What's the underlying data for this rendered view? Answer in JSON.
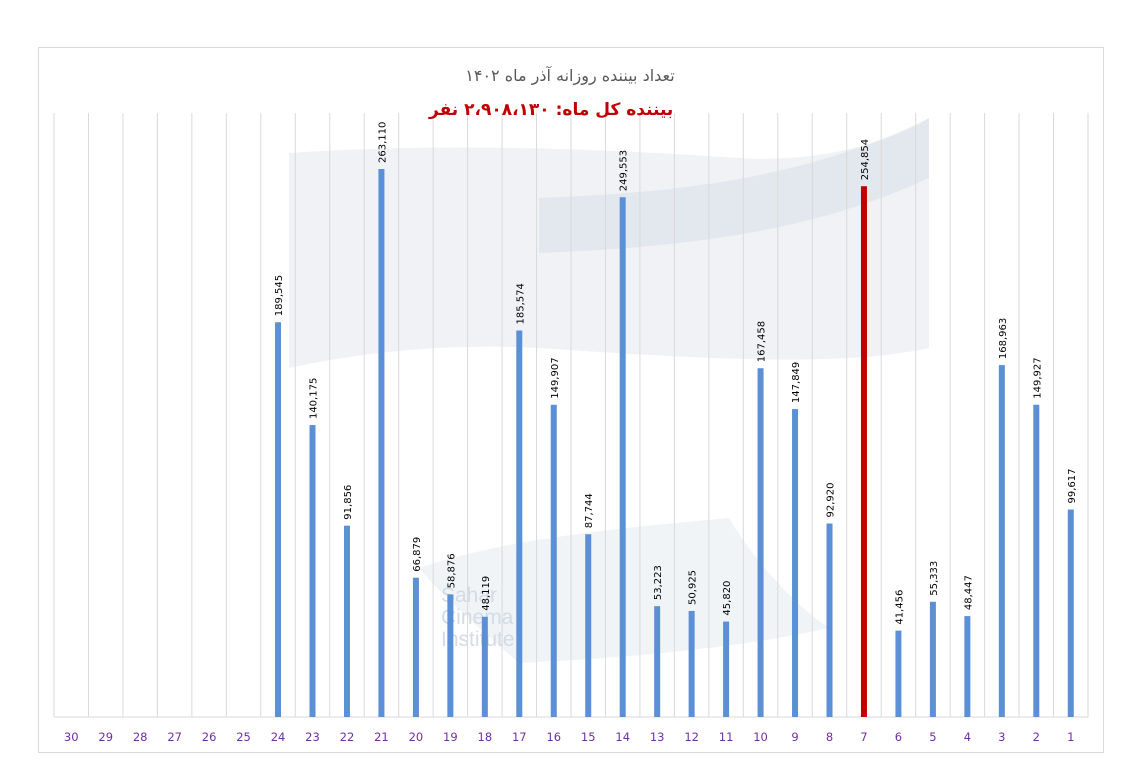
{
  "chart_data": {
    "type": "bar",
    "title": "تعداد بیننده روزانه آذر ماه ۱۴۰۲",
    "subtitle": "بیننده کل ماه: ۲،۹۰۸،۱۳۰ نفر",
    "categories": [
      "1",
      "2",
      "3",
      "4",
      "5",
      "6",
      "7",
      "8",
      "9",
      "10",
      "11",
      "12",
      "13",
      "14",
      "15",
      "16",
      "17",
      "18",
      "19",
      "20",
      "21",
      "22",
      "23",
      "24",
      "25",
      "26",
      "27",
      "28",
      "29",
      "30"
    ],
    "values": [
      99617,
      149927,
      168963,
      48447,
      55333,
      41456,
      254854,
      92920,
      147849,
      167458,
      45820,
      50925,
      53223,
      249553,
      87744,
      149907,
      185574,
      48119,
      58876,
      66879,
      263110,
      91856,
      140175,
      189545,
      null,
      null,
      null,
      null,
      null,
      null
    ],
    "value_labels": [
      "99,617",
      "149,927",
      "168,963",
      "48,447",
      "55,333",
      "41,456",
      "254,854",
      "92,920",
      "147,849",
      "167,458",
      "45,820",
      "50,925",
      "53,223",
      "249,553",
      "87,744",
      "149,907",
      "185,574",
      "48,119",
      "58,876",
      "66,879",
      "263,110",
      "91,856",
      "140,175",
      "189,545",
      "",
      "",
      "",
      "",
      "",
      ""
    ],
    "highlight_category": "7",
    "x_direction": "right-to-left",
    "ylim": [
      0,
      290000
    ],
    "grid": true,
    "colors": {
      "bar": "#5b8fd6",
      "highlight": "#c00000",
      "grid": "#d9d9d9",
      "tick": "#7030a0",
      "total": "#c00000"
    }
  },
  "watermark": {
    "lines": [
      "Sahar",
      "Cinema",
      "Institute"
    ]
  }
}
